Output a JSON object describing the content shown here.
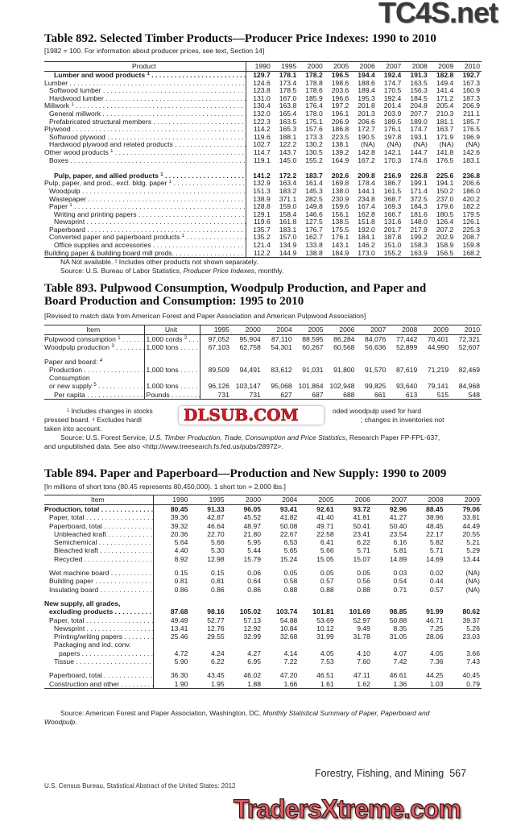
{
  "watermarks": {
    "top": "TC4S.net",
    "middle": "DLSUB.COM",
    "bottom": "TradersXtreme.com"
  },
  "t892": {
    "title": "Table 892. Selected Timber Products—Producer Price Indexes: 1990 to 2010",
    "subtitle": "[1982 = 100. For information about producer prices, see text, Section 14]",
    "headers": [
      "Product",
      "1990",
      "1995",
      "2000",
      "2005",
      "2006",
      "2007",
      "2008",
      "2009",
      "2010"
    ],
    "rows": [
      {
        "label": "Lumber and wood products",
        "fn": "1",
        "bold": true,
        "indent": 2,
        "values": [
          "129.7",
          "178.1",
          "178.2",
          "196.5",
          "194.4",
          "192.4",
          "191.3",
          "182.8",
          "192.7"
        ]
      },
      {
        "label": "Lumber",
        "indent": 0,
        "values": [
          "124.6",
          "173.4",
          "178.8",
          "198.6",
          "188.6",
          "174.7",
          "163.5",
          "149.4",
          "167.3"
        ]
      },
      {
        "label": "Softwood lumber",
        "indent": 1,
        "values": [
          "123.8",
          "178.5",
          "178.6",
          "203.6",
          "189.4",
          "170.5",
          "156.3",
          "141.4",
          "160.9"
        ]
      },
      {
        "label": "Hardwood lumber",
        "indent": 1,
        "values": [
          "131.0",
          "167.0",
          "185.9",
          "196.6",
          "195.3",
          "192.4",
          "184.5",
          "171.2",
          "187.3"
        ]
      },
      {
        "label": "Millwork",
        "fn": "1",
        "indent": 0,
        "values": [
          "130.4",
          "163.8",
          "176.4",
          "197.2",
          "201.8",
          "201.4",
          "204.8",
          "205.4",
          "206.9"
        ]
      },
      {
        "label": "General millwork",
        "indent": 1,
        "values": [
          "132.0",
          "165.4",
          "178.0",
          "196.1",
          "201.3",
          "203.9",
          "207.7",
          "210.3",
          "211.1"
        ]
      },
      {
        "label": "Prefabricated structural members",
        "indent": 1,
        "values": [
          "122.3",
          "163.5",
          "175.1",
          "206.9",
          "206.6",
          "189.5",
          "189.0",
          "181.1",
          "185.7"
        ]
      },
      {
        "label": "Plywood",
        "indent": 0,
        "values": [
          "114.2",
          "165.3",
          "157.6",
          "186.8",
          "172.7",
          "176.1",
          "174.7",
          "163.7",
          "176.5"
        ]
      },
      {
        "label": "Softwood plywood",
        "indent": 1,
        "values": [
          "119.6",
          "188.1",
          "173.3",
          "223.5",
          "190.5",
          "197.8",
          "193.1",
          "171.9",
          "196.9"
        ]
      },
      {
        "label": "Hardwood plywood and related products",
        "indent": 1,
        "values": [
          "102.7",
          "122.2",
          "130.2",
          "138.1",
          "(NA)",
          "(NA)",
          "(NA)",
          "(NA)",
          "(NA)"
        ]
      },
      {
        "label": "Other wood products",
        "fn": "1",
        "indent": 0,
        "values": [
          "114.7",
          "143.7",
          "130.5",
          "139.2",
          "142.8",
          "142.1",
          "144.7",
          "141.8",
          "142.6"
        ]
      },
      {
        "label": "Boxes",
        "indent": 1,
        "values": [
          "119.1",
          "145.0",
          "155.2",
          "164.9",
          "167.2",
          "170.3",
          "174.6",
          "176.5",
          "183.1"
        ]
      },
      {
        "blank": true
      },
      {
        "label": "Pulp, paper, and allied products",
        "fn": "1",
        "bold": true,
        "indent": 2,
        "values": [
          "141.2",
          "172.2",
          "183.7",
          "202.6",
          "209.8",
          "216.9",
          "226.8",
          "225.6",
          "236.8"
        ]
      },
      {
        "label": "Pulp, paper, and prod., excl. bldg. paper",
        "fn": "1",
        "indent": 0,
        "values": [
          "132.9",
          "163.4",
          "161.4",
          "169.8",
          "178.4",
          "186.7",
          "199.1",
          "194.1",
          "206.6"
        ]
      },
      {
        "label": "Woodpulp",
        "indent": 1,
        "values": [
          "151.3",
          "183.2",
          "145.3",
          "138.0",
          "144.1",
          "161.5",
          "171.4",
          "150.2",
          "186.0"
        ]
      },
      {
        "label": "Wastepaper",
        "indent": 1,
        "values": [
          "138.9",
          "371.1",
          "282.5",
          "230.9",
          "234.8",
          "368.7",
          "372.5",
          "237.0",
          "420.2"
        ]
      },
      {
        "label": "Paper",
        "fn": "1",
        "indent": 1,
        "values": [
          "128.8",
          "159.0",
          "149.8",
          "159.6",
          "167.4",
          "169.3",
          "184.3",
          "179.6",
          "182.2"
        ]
      },
      {
        "label": "Writing and printing papers",
        "indent": 2,
        "values": [
          "129.1",
          "158.4",
          "146.6",
          "156.1",
          "162.8",
          "166.7",
          "181.6",
          "180.5",
          "179.5"
        ]
      },
      {
        "label": "Newsprint",
        "indent": 2,
        "values": [
          "119.6",
          "161.8",
          "127.5",
          "138.5",
          "151.8",
          "131.6",
          "148.0",
          "126.4",
          "126.1"
        ]
      },
      {
        "label": "Paperboard",
        "indent": 1,
        "values": [
          "135.7",
          "183.1",
          "176.7",
          "175.5",
          "192.0",
          "201.7",
          "217.9",
          "207.2",
          "225.3"
        ]
      },
      {
        "label": "Converted paper and paperboard products",
        "fn": "1",
        "indent": 1,
        "values": [
          "135.2",
          "157.0",
          "162.7",
          "176.1",
          "184.1",
          "187.8",
          "199.2",
          "202.9",
          "208.7"
        ]
      },
      {
        "label": "Office supplies and accessories",
        "indent": 2,
        "values": [
          "121.4",
          "134.9",
          "133.8",
          "143.1",
          "146.2",
          "151.0",
          "158.3",
          "158.9",
          "159.8"
        ]
      },
      {
        "label": "Building paper & building board mill prods.",
        "indent": 0,
        "values": [
          "112.2",
          "144.9",
          "138.8",
          "184.9",
          "173.0",
          "155.2",
          "163.9",
          "156.5",
          "168.2"
        ]
      }
    ],
    "note": "NA Not available. ¹ Includes other products not shown separately.",
    "source_prefix": "Source: U.S. Bureau of Labor Statistics, ",
    "source_title": "Producer Price Indexes",
    "source_suffix": ", monthly."
  },
  "t893": {
    "title_line1": "Table 893. Pulpwood Consumption, Woodpulp Production, and Paper and",
    "title_line2": "Board Production and Consumption: 1995 to 2010",
    "subtitle": "[Revised to match data from American Forest and Paper Association and American Pulpwood Association]",
    "headers": [
      "Item",
      "Unit",
      "1995",
      "2000",
      "2004",
      "2005",
      "2006",
      "2007",
      "2008",
      "2009",
      "2010"
    ],
    "rows": [
      {
        "label": "Pulpwood consumption",
        "fn": "1",
        "indent": 0,
        "unit": "1,000 cords",
        "unit_fn": "2",
        "values": [
          "97,052",
          "95,904",
          "87,110",
          "88,595",
          "86,284",
          "84,076",
          "77,442",
          "70,401",
          "72,321"
        ]
      },
      {
        "label": "Woodpulp production",
        "fn": "3",
        "indent": 0,
        "unit": "1,000 tons",
        "values": [
          "67,103",
          "62,758",
          "54,301",
          "60,267",
          "60,568",
          "56,636",
          "52,899",
          "44,990",
          "52,607"
        ]
      },
      {
        "blank": true
      },
      {
        "label": "Paper and board:",
        "fn": "4",
        "indent": 0,
        "nodots": true
      },
      {
        "label": "Production",
        "indent": 1,
        "unit": "1,000 tons",
        "values": [
          "89,509",
          "94,491",
          "83,612",
          "91,031",
          "91,800",
          "91,570",
          "87,619",
          "71,219",
          "82,469"
        ]
      },
      {
        "label": "Consumption",
        "indent": 1,
        "nodots": true
      },
      {
        "label": "or new supply",
        "fn": "5",
        "indent": 1,
        "unit": "1,000 tons",
        "values": [
          "96,126",
          "103,147",
          "95,068",
          "101,864",
          "102,948",
          "99,825",
          "93,640",
          "79,141",
          "84,968"
        ]
      },
      {
        "label": "Per capita",
        "indent": 2,
        "unit": "Pounds",
        "values": [
          "731",
          "731",
          "627",
          "687",
          "688",
          "661",
          "613",
          "515",
          "548"
        ]
      }
    ],
    "footnote_a": "¹ Includes changes in stocks",
    "footnote_b": "oded woodpulp used for hard",
    "footnote_c": "pressed board. ⁴ Excludes hardl",
    "footnote_d": "; changes in inventories not",
    "footnote_e": "taken into account.",
    "source_prefix": "Source: U.S. Forest Service, ",
    "source_title": "U.S. Timber Production, Trade, Consumption and Price Statistics",
    "source_suffix": ", Research Paper FP-FPL-637,",
    "source_line2": "and unpublished data. See also <http://www.treesearch.fs.fed.us/pubs/28972>."
  },
  "t894": {
    "title": "Table 894. Paper and Paperboard—Production and New Supply: 1990 to 2009",
    "subtitle": "[In millions of short tons (80.45 represents 80,450,000). 1 short ton = 2,000 lbs.]",
    "headers": [
      "Item",
      "1990",
      "1995",
      "2000",
      "2004",
      "2005",
      "2006",
      "2007",
      "2008",
      "2009"
    ],
    "rows": [
      {
        "label": "Production, total",
        "bold": true,
        "indent": 0,
        "values": [
          "80.45",
          "91.33",
          "96.05",
          "93.41",
          "92.61",
          "93.72",
          "92.96",
          "88.45",
          "79.06"
        ]
      },
      {
        "label": "Paper, total",
        "indent": 1,
        "values": [
          "39.36",
          "42.87",
          "45.52",
          "41.82",
          "41.40",
          "41.81",
          "41.27",
          "38.96",
          "33.81"
        ]
      },
      {
        "label": "Paperboard, total",
        "indent": 1,
        "values": [
          "39.32",
          "46.64",
          "48.97",
          "50.08",
          "49.71",
          "50.41",
          "50.40",
          "48.45",
          "44.49"
        ]
      },
      {
        "label": "Unbleached kraft",
        "indent": 2,
        "values": [
          "20.36",
          "22.70",
          "21.80",
          "22.67",
          "22.58",
          "23.41",
          "23.54",
          "22.17",
          "20.55"
        ]
      },
      {
        "label": "Semichemical",
        "indent": 2,
        "values": [
          "5.64",
          "5.66",
          "5.95",
          "6.53",
          "6.41",
          "6.22",
          "6.16",
          "5.82",
          "5.21"
        ]
      },
      {
        "label": "Bleached kraft",
        "indent": 2,
        "values": [
          "4.40",
          "5.30",
          "5.44",
          "5.65",
          "5.66",
          "5.71",
          "5.81",
          "5.71",
          "5.29"
        ]
      },
      {
        "label": "Recycled",
        "indent": 2,
        "values": [
          "8.92",
          "12.98",
          "15.79",
          "15.24",
          "15.05",
          "15.07",
          "14.89",
          "14.69",
          "13.44"
        ]
      },
      {
        "blank": true
      },
      {
        "label": "Wet machine board",
        "indent": 1,
        "values": [
          "0.15",
          "0.15",
          "0.06",
          "0.05",
          "0.05",
          "0.05",
          "0.03",
          "0.02",
          "(NA)"
        ]
      },
      {
        "label": "Building paper",
        "indent": 1,
        "values": [
          "0.81",
          "0.81",
          "0.64",
          "0.58",
          "0.57",
          "0.56",
          "0.54",
          "0.44",
          "(NA)"
        ]
      },
      {
        "label": "Insulating board",
        "indent": 1,
        "values": [
          "0.86",
          "0.86",
          "0.86",
          "0.88",
          "0.88",
          "0.88",
          "0.71",
          "0.57",
          "(NA)"
        ]
      },
      {
        "blank": true
      },
      {
        "label": "New supply, all grades,",
        "bold": true,
        "indent": 0,
        "nodots": true
      },
      {
        "label": "excluding products",
        "bold": true,
        "indent": 1,
        "values": [
          "87.68",
          "98.16",
          "105.02",
          "103.74",
          "101.81",
          "101.69",
          "98.85",
          "91.99",
          "80.62"
        ]
      },
      {
        "label": "Paper, total",
        "indent": 1,
        "values": [
          "49.49",
          "52.77",
          "57.13",
          "54.88",
          "53.69",
          "52.97",
          "50.88",
          "46.71",
          "39.37"
        ]
      },
      {
        "label": "Newsprint",
        "indent": 2,
        "values": [
          "13.41",
          "12.76",
          "12.92",
          "10.84",
          "10.12",
          "9.49",
          "8.35",
          "7.25",
          "5.26"
        ]
      },
      {
        "label": "Printing/writing papers",
        "indent": 2,
        "values": [
          "25.46",
          "29.55",
          "32.99",
          "32.68",
          "31.99",
          "31.78",
          "31.05",
          "28.06",
          "23.03"
        ]
      },
      {
        "label": "Packaging and ind. conv.",
        "indent": 2,
        "nodots": true
      },
      {
        "label": "papers",
        "indent": 3,
        "values": [
          "4.72",
          "4.24",
          "4.27",
          "4.14",
          "4.05",
          "4.10",
          "4.07",
          "4.05",
          "3.66"
        ]
      },
      {
        "label": "Tissue",
        "indent": 2,
        "values": [
          "5.90",
          "6.22",
          "6.95",
          "7.22",
          "7.53",
          "7.60",
          "7.42",
          "7.36",
          "7.43"
        ]
      },
      {
        "blank": true
      },
      {
        "label": "Paperboard, total",
        "indent": 1,
        "values": [
          "36.30",
          "43.45",
          "46.02",
          "47.20",
          "46.51",
          "47.11",
          "46.61",
          "44.25",
          "40.45"
        ]
      },
      {
        "label": "Construction and other",
        "indent": 1,
        "values": [
          "1.90",
          "1.95",
          "1.88",
          "1.66",
          "1.61",
          "1.62",
          "1.36",
          "1.03",
          "0.79"
        ]
      }
    ],
    "source_prefix": "Source: American Forest and Paper Association, Washington, DC, ",
    "source_title": "Monthly Statistical Summary of Paper, Paperboard and",
    "source_title2": "Woodpulp",
    "source_suffix": "."
  },
  "footer": {
    "section": "Forestry, Fishing, and Mining",
    "page_number": "567",
    "publication": "U.S. Census Bureau, Statistical Abstract of the United States: 2012"
  }
}
